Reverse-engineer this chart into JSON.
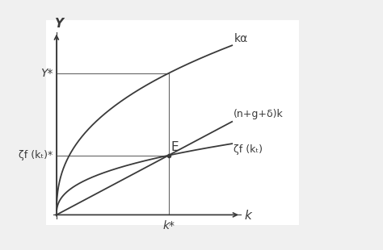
{
  "background_color": "#f0f0f0",
  "plot_bg_color": "#ffffff",
  "line_color": "#3a3a3a",
  "axis_color": "#3a3a3a",
  "ref_line_color": "#666666",
  "alpha_exp": 0.4,
  "zeta": 0.42,
  "ngd_slope": 0.55,
  "x_max": 1.0,
  "y_max": 1.0,
  "label_k_alpha": "kα",
  "label_ngd": "(n+g+δ)k",
  "label_zf": "ζf (kₜ)",
  "label_Y": "Y",
  "label_k": "k",
  "label_Ystar": "Y*",
  "label_zetafstar": "ζf (kₜ)*",
  "label_kstar": "k*",
  "label_E": "E",
  "font_size": 10,
  "font_size_axis": 11,
  "lw": 1.3
}
